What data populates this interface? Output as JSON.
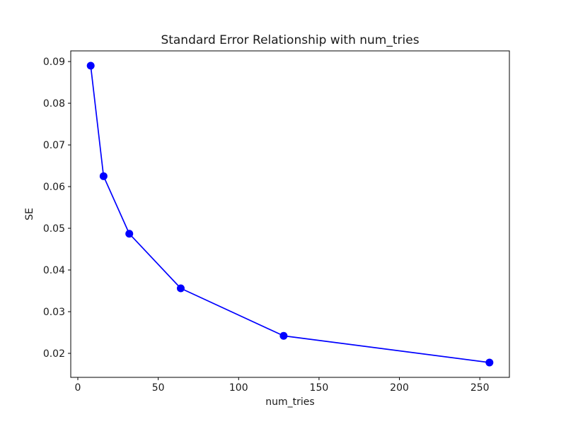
{
  "chart_data": {
    "type": "line",
    "title": "Standard Error Relationship with num_tries",
    "xlabel": "num_tries",
    "ylabel": "SE",
    "series": [
      {
        "name": "SE",
        "color": "#0000ff",
        "marker": "circle",
        "x": [
          8,
          16,
          32,
          64,
          128,
          256
        ],
        "y": [
          0.089,
          0.0625,
          0.0487,
          0.0356,
          0.0242,
          0.0178
        ]
      }
    ],
    "xlim": [
      -4.4,
      268.4
    ],
    "ylim": [
      0.01424,
      0.09256
    ],
    "xticks": {
      "values": [
        0,
        50,
        100,
        150,
        200,
        250
      ],
      "labels": [
        "0",
        "50",
        "100",
        "150",
        "200",
        "250"
      ]
    },
    "yticks": {
      "values": [
        0.02,
        0.03,
        0.04,
        0.05,
        0.06,
        0.07,
        0.08,
        0.09
      ],
      "labels": [
        "0.02",
        "0.03",
        "0.04",
        "0.05",
        "0.06",
        "0.07",
        "0.08",
        "0.09"
      ]
    },
    "grid": false,
    "legend_position": "none",
    "spine_color": "#000000",
    "background": "#ffffff"
  }
}
